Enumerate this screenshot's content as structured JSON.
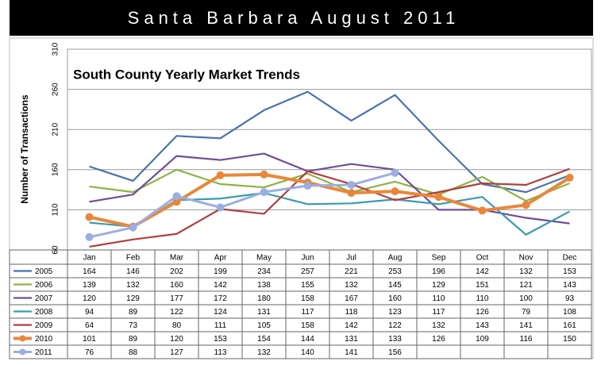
{
  "title": "Santa Barbara August 2011",
  "chart_data": {
    "type": "line",
    "title": "South County Yearly Market Trends",
    "y_label": "Number of Transactions",
    "categories": [
      "Jan",
      "Feb",
      "Mar",
      "Apr",
      "May",
      "Jun",
      "Jul",
      "Aug",
      "Sep",
      "Oct",
      "Nov",
      "Dec"
    ],
    "ylim": [
      60,
      310
    ],
    "yticks": [
      60,
      110,
      160,
      210,
      260,
      310
    ],
    "grid": true,
    "series": [
      {
        "name": "2005",
        "color": "#4a72b0",
        "values": [
          164,
          146,
          202,
          199,
          234,
          257,
          221,
          253,
          196,
          142,
          132,
          153
        ]
      },
      {
        "name": "2006",
        "color": "#8db345",
        "values": [
          139,
          132,
          160,
          142,
          138,
          155,
          132,
          145,
          129,
          151,
          121,
          143
        ]
      },
      {
        "name": "2007",
        "color": "#6e4f9a",
        "values": [
          120,
          129,
          177,
          172,
          180,
          158,
          167,
          160,
          110,
          110,
          100,
          93
        ]
      },
      {
        "name": "2008",
        "color": "#3a9bb0",
        "values": [
          94,
          89,
          122,
          124,
          131,
          117,
          118,
          123,
          117,
          126,
          79,
          108
        ]
      },
      {
        "name": "2009",
        "color": "#b04040",
        "values": [
          64,
          73,
          80,
          111,
          105,
          158,
          142,
          122,
          132,
          143,
          141,
          161
        ]
      },
      {
        "name": "2010",
        "color": "#e8873a",
        "values": [
          101,
          89,
          120,
          153,
          154,
          144,
          131,
          133,
          126,
          109,
          116,
          150
        ],
        "markers": true,
        "width": 4
      },
      {
        "name": "2011",
        "color": "#9aaee0",
        "values": [
          76,
          88,
          127,
          113,
          132,
          140,
          141,
          156,
          null,
          null,
          null,
          null
        ],
        "markers": true,
        "width": 3
      }
    ]
  }
}
